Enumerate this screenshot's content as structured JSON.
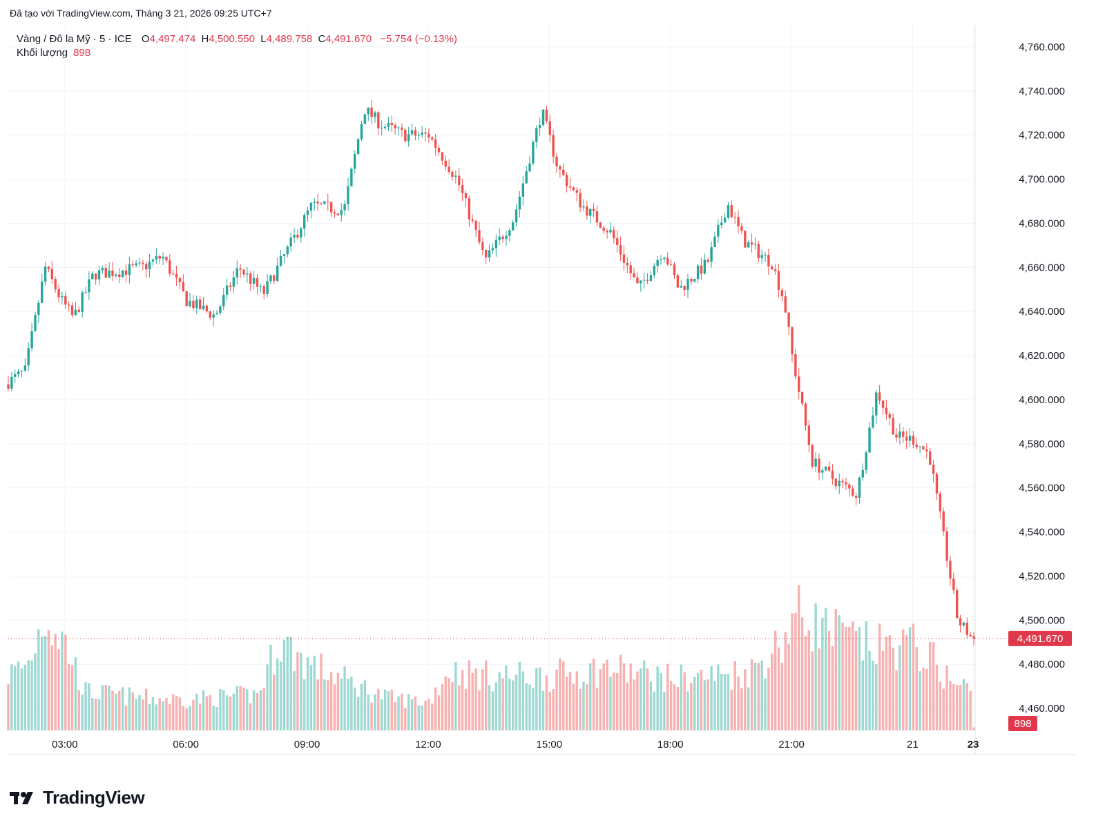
{
  "caption": "Đã tạo với TradingView.com, Tháng 3 21, 2026 09:25 UTC+7",
  "legend": {
    "symbol": "Vàng / Đô la Mỹ · 5 · ICE",
    "open_label": "O",
    "open": "4,497.474",
    "high_label": "H",
    "high": "4,500.550",
    "low_label": "L",
    "low": "4,489.758",
    "close_label": "C",
    "close": "4,491.670",
    "change": "−5.754 (−0.13%)"
  },
  "volume": {
    "label": "Khối lượng",
    "value": "898"
  },
  "brand": "TradingView",
  "colors": {
    "up": "#26a69a",
    "down": "#ef5350",
    "up_vol": "#9ed8d2",
    "down_vol": "#f6b1b0",
    "price_tag": "#e0374b"
  },
  "chart_data": {
    "type": "candlestick",
    "title": "Vàng / Đô la Mỹ · 5 · ICE",
    "ylim": [
      4450,
      4770
    ],
    "y_ticks": [
      "4,760.000",
      "4,740.000",
      "4,720.000",
      "4,700.000",
      "4,680.000",
      "4,660.000",
      "4,640.000",
      "4,620.000",
      "4,600.000",
      "4,580.000",
      "4,560.000",
      "4,540.000",
      "4,520.000",
      "4,500.000",
      "4,480.000",
      "4,460.000"
    ],
    "y_tick_values": [
      4760,
      4740,
      4720,
      4700,
      4680,
      4660,
      4640,
      4620,
      4600,
      4580,
      4560,
      4540,
      4520,
      4500,
      4480,
      4460
    ],
    "x_ticks": [
      "03:00",
      "06:00",
      "09:00",
      "12:00",
      "15:00",
      "18:00",
      "21:00",
      "21",
      "23"
    ],
    "x_tick_hours": [
      3,
      6,
      9,
      12,
      15,
      18,
      21,
      24,
      25.5
    ],
    "x_range_hours": [
      1.6,
      25.55
    ],
    "last_price": 4491.67,
    "last_price_label": "4,491.670",
    "last_volume_label": "898",
    "path_hours": [
      1.6,
      2.1,
      2.6,
      3.0,
      3.3,
      3.8,
      4.3,
      5.0,
      5.5,
      6.1,
      6.8,
      7.4,
      8.0,
      8.6,
      9.2,
      10.0,
      10.5,
      10.9,
      11.5,
      12.1,
      12.8,
      13.5,
      14.2,
      14.9,
      15.3,
      15.9,
      16.6,
      17.3,
      17.9,
      18.3,
      19.0,
      19.5,
      19.9,
      20.6,
      20.9,
      21.1,
      21.6,
      22.2,
      22.7,
      23.2,
      23.7,
      24.1,
      24.5,
      25.2,
      25.55
    ],
    "path_prices": [
      4607,
      4613,
      4660,
      4645,
      4637,
      4657,
      4658,
      4660,
      4665,
      4645,
      4638,
      4660,
      4648,
      4668,
      4688,
      4686,
      4732,
      4725,
      4720,
      4720,
      4700,
      4663,
      4682,
      4731,
      4705,
      4688,
      4676,
      4650,
      4668,
      4650,
      4662,
      4689,
      4672,
      4662,
      4645,
      4620,
      4572,
      4563,
      4557,
      4604,
      4583,
      4582,
      4575,
      4500,
      4492
    ],
    "volume_profile_hours": [
      1.6,
      2.1,
      2.5,
      3.0,
      3.5,
      5.0,
      6.0,
      7.0,
      7.8,
      8.3,
      9.0,
      10.0,
      11.0,
      12.0,
      12.5,
      13.5,
      15.0,
      16.5,
      18.0,
      19.0,
      20.0,
      20.8,
      21.1,
      22.0,
      23.0,
      24.0,
      24.5,
      25.0,
      25.5
    ],
    "volume_profile": [
      430,
      520,
      900,
      680,
      300,
      250,
      240,
      260,
      280,
      700,
      520,
      380,
      250,
      220,
      460,
      420,
      420,
      480,
      400,
      420,
      460,
      700,
      900,
      760,
      640,
      660,
      540,
      360,
      320
    ]
  }
}
